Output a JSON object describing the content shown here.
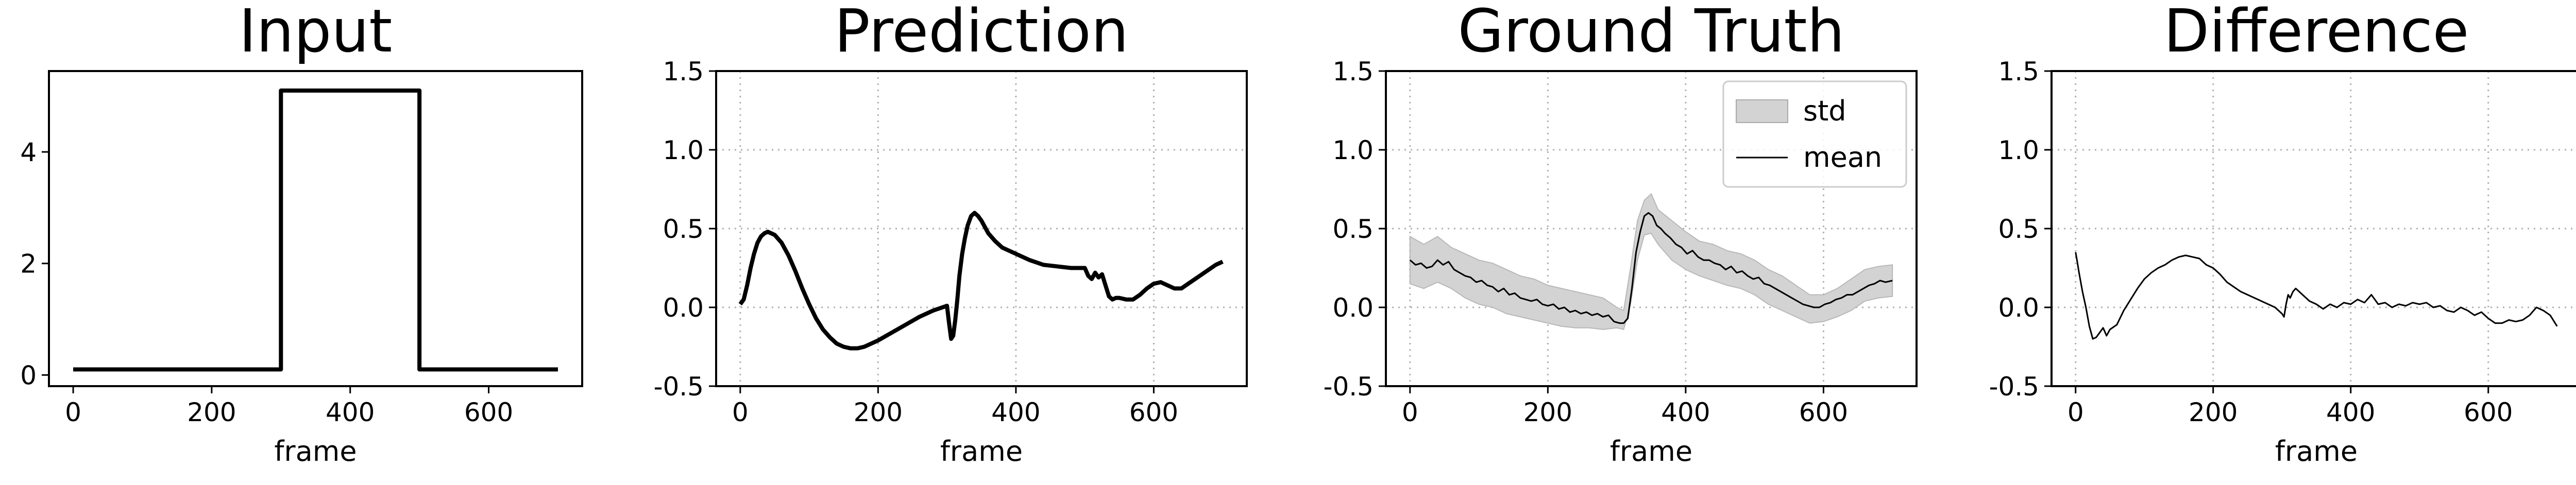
{
  "chart_data": [
    {
      "type": "line",
      "title": "Input",
      "xlabel": "frame",
      "ylabel": "",
      "xlim": [
        -35,
        735
      ],
      "ylim": [
        -0.2,
        5.45
      ],
      "xticks": [
        0,
        200,
        400,
        600
      ],
      "yticks": [
        0,
        2,
        4
      ],
      "grid": false,
      "series": [
        {
          "style": "thick",
          "color": "#000000",
          "x": [
            0,
            300,
            300,
            500,
            500,
            700
          ],
          "y": [
            0.1,
            0.1,
            5.1,
            5.1,
            0.1,
            0.1
          ]
        }
      ]
    },
    {
      "type": "line",
      "title": "Prediction",
      "xlabel": "frame",
      "ylabel": "",
      "xlim": [
        -35,
        735
      ],
      "ylim": [
        -0.5,
        1.5
      ],
      "xticks": [
        0,
        200,
        400,
        600
      ],
      "yticks": [
        -0.5,
        0.0,
        0.5,
        1.0,
        1.5
      ],
      "grid": true,
      "series": [
        {
          "style": "thick",
          "color": "#000000",
          "x": [
            0,
            5,
            10,
            15,
            20,
            25,
            30,
            35,
            40,
            45,
            50,
            60,
            70,
            80,
            90,
            100,
            110,
            120,
            130,
            140,
            150,
            160,
            170,
            180,
            190,
            200,
            220,
            240,
            260,
            280,
            300,
            303,
            306,
            309,
            312,
            315,
            318,
            322,
            326,
            330,
            335,
            340,
            345,
            350,
            355,
            360,
            370,
            380,
            390,
            400,
            420,
            440,
            460,
            480,
            500,
            505,
            510,
            515,
            520,
            525,
            530,
            535,
            540,
            545,
            550,
            560,
            570,
            580,
            590,
            600,
            610,
            620,
            630,
            640,
            650,
            660,
            670,
            680,
            690,
            700
          ],
          "y": [
            0.02,
            0.05,
            0.14,
            0.25,
            0.34,
            0.41,
            0.45,
            0.47,
            0.48,
            0.47,
            0.46,
            0.41,
            0.33,
            0.23,
            0.12,
            0.02,
            -0.07,
            -0.14,
            -0.19,
            -0.23,
            -0.25,
            -0.26,
            -0.26,
            -0.25,
            -0.23,
            -0.21,
            -0.16,
            -0.11,
            -0.06,
            -0.02,
            0.01,
            -0.1,
            -0.2,
            -0.18,
            -0.08,
            0.05,
            0.2,
            0.34,
            0.44,
            0.52,
            0.58,
            0.6,
            0.58,
            0.55,
            0.51,
            0.47,
            0.42,
            0.38,
            0.36,
            0.34,
            0.3,
            0.27,
            0.26,
            0.25,
            0.25,
            0.2,
            0.18,
            0.22,
            0.19,
            0.21,
            0.14,
            0.07,
            0.05,
            0.06,
            0.06,
            0.05,
            0.05,
            0.08,
            0.12,
            0.15,
            0.16,
            0.14,
            0.12,
            0.12,
            0.15,
            0.18,
            0.21,
            0.24,
            0.27,
            0.29
          ]
        }
      ]
    },
    {
      "type": "area",
      "title": "Ground Truth",
      "xlabel": "frame",
      "ylabel": "",
      "xlim": [
        -35,
        735
      ],
      "ylim": [
        -0.5,
        1.5
      ],
      "xticks": [
        0,
        200,
        400,
        600
      ],
      "yticks": [
        -0.5,
        0.0,
        0.5,
        1.0,
        1.5
      ],
      "grid": true,
      "legend_position": "top-right",
      "legend": [
        {
          "label": "std",
          "kind": "patch",
          "color": "#d3d3d3"
        },
        {
          "label": "mean",
          "kind": "line",
          "color": "#000000"
        }
      ],
      "band": {
        "x": [
          0,
          20,
          40,
          60,
          80,
          100,
          120,
          140,
          160,
          180,
          200,
          220,
          240,
          260,
          280,
          300,
          310,
          320,
          330,
          340,
          350,
          360,
          380,
          400,
          420,
          440,
          460,
          480,
          500,
          520,
          540,
          560,
          580,
          600,
          620,
          640,
          660,
          680,
          700
        ],
        "upper": [
          0.45,
          0.4,
          0.45,
          0.38,
          0.34,
          0.3,
          0.28,
          0.24,
          0.2,
          0.18,
          0.14,
          0.12,
          0.1,
          0.08,
          0.06,
          0.0,
          -0.02,
          0.25,
          0.55,
          0.68,
          0.72,
          0.62,
          0.55,
          0.48,
          0.42,
          0.4,
          0.36,
          0.34,
          0.3,
          0.24,
          0.2,
          0.14,
          0.08,
          0.08,
          0.12,
          0.18,
          0.24,
          0.26,
          0.27
        ],
        "lower": [
          0.15,
          0.12,
          0.16,
          0.12,
          0.06,
          0.02,
          0.0,
          -0.04,
          -0.06,
          -0.08,
          -0.1,
          -0.12,
          -0.13,
          -0.13,
          -0.14,
          -0.13,
          -0.14,
          0.02,
          0.3,
          0.46,
          0.47,
          0.4,
          0.3,
          0.24,
          0.2,
          0.17,
          0.14,
          0.12,
          0.08,
          0.02,
          -0.02,
          -0.06,
          -0.1,
          -0.09,
          -0.06,
          -0.02,
          0.04,
          0.06,
          0.07
        ]
      },
      "series": [
        {
          "style": "thin",
          "color": "#000000",
          "x": [
            0,
            8,
            16,
            24,
            32,
            40,
            48,
            56,
            64,
            72,
            80,
            88,
            96,
            104,
            112,
            120,
            128,
            136,
            144,
            152,
            160,
            168,
            176,
            184,
            192,
            200,
            208,
            216,
            224,
            232,
            240,
            248,
            256,
            264,
            272,
            280,
            288,
            296,
            304,
            310,
            316,
            322,
            328,
            334,
            340,
            346,
            352,
            358,
            364,
            370,
            378,
            386,
            394,
            402,
            410,
            418,
            426,
            434,
            442,
            450,
            458,
            466,
            474,
            482,
            490,
            498,
            506,
            514,
            522,
            530,
            538,
            546,
            554,
            562,
            570,
            578,
            586,
            594,
            602,
            610,
            618,
            626,
            634,
            642,
            650,
            658,
            666,
            674,
            682,
            690,
            700
          ],
          "y": [
            0.3,
            0.27,
            0.28,
            0.25,
            0.26,
            0.3,
            0.27,
            0.29,
            0.24,
            0.22,
            0.2,
            0.19,
            0.16,
            0.17,
            0.14,
            0.13,
            0.1,
            0.12,
            0.08,
            0.09,
            0.06,
            0.05,
            0.04,
            0.05,
            0.02,
            0.01,
            0.02,
            -0.01,
            0.0,
            -0.03,
            -0.02,
            -0.04,
            -0.03,
            -0.05,
            -0.04,
            -0.06,
            -0.05,
            -0.09,
            -0.1,
            -0.1,
            -0.07,
            0.12,
            0.35,
            0.48,
            0.58,
            0.6,
            0.58,
            0.52,
            0.5,
            0.47,
            0.44,
            0.4,
            0.38,
            0.34,
            0.36,
            0.32,
            0.3,
            0.3,
            0.28,
            0.27,
            0.24,
            0.26,
            0.22,
            0.23,
            0.2,
            0.18,
            0.19,
            0.15,
            0.14,
            0.12,
            0.1,
            0.08,
            0.06,
            0.04,
            0.02,
            0.01,
            0.0,
            0.0,
            0.02,
            0.03,
            0.05,
            0.06,
            0.08,
            0.08,
            0.1,
            0.12,
            0.14,
            0.15,
            0.17,
            0.16,
            0.17
          ]
        }
      ]
    },
    {
      "type": "line",
      "title": "Difference",
      "xlabel": "frame",
      "ylabel": "",
      "xlim": [
        -35,
        735
      ],
      "ylim": [
        -0.5,
        1.5
      ],
      "xticks": [
        0,
        200,
        400,
        600
      ],
      "yticks": [
        -0.5,
        0.0,
        0.5,
        1.0,
        1.5
      ],
      "grid": true,
      "series": [
        {
          "style": "thin",
          "color": "#000000",
          "x": [
            0,
            2,
            5,
            10,
            15,
            20,
            25,
            30,
            35,
            40,
            45,
            50,
            60,
            70,
            80,
            90,
            100,
            110,
            120,
            130,
            140,
            150,
            160,
            170,
            180,
            190,
            200,
            210,
            220,
            230,
            240,
            250,
            260,
            270,
            280,
            290,
            300,
            303,
            306,
            309,
            312,
            316,
            320,
            330,
            340,
            350,
            360,
            370,
            380,
            390,
            400,
            410,
            420,
            430,
            440,
            450,
            460,
            470,
            480,
            490,
            500,
            510,
            520,
            530,
            540,
            550,
            560,
            570,
            580,
            590,
            600,
            610,
            620,
            630,
            640,
            650,
            660,
            670,
            680,
            690,
            700
          ],
          "y": [
            0.35,
            0.3,
            0.22,
            0.1,
            0.0,
            -0.12,
            -0.2,
            -0.19,
            -0.16,
            -0.13,
            -0.18,
            -0.14,
            -0.11,
            -0.02,
            0.05,
            0.12,
            0.18,
            0.22,
            0.25,
            0.27,
            0.3,
            0.32,
            0.33,
            0.32,
            0.31,
            0.27,
            0.25,
            0.21,
            0.16,
            0.13,
            0.1,
            0.08,
            0.06,
            0.04,
            0.02,
            0.0,
            -0.04,
            -0.06,
            0.02,
            0.08,
            0.06,
            0.1,
            0.12,
            0.08,
            0.04,
            0.02,
            -0.01,
            0.02,
            0.0,
            0.03,
            0.02,
            0.05,
            0.03,
            0.08,
            0.02,
            0.03,
            0.0,
            0.02,
            0.01,
            0.03,
            0.02,
            0.03,
            0.0,
            0.01,
            -0.02,
            -0.03,
            0.0,
            -0.02,
            -0.05,
            -0.03,
            -0.07,
            -0.1,
            -0.1,
            -0.08,
            -0.09,
            -0.08,
            -0.05,
            0.0,
            -0.02,
            -0.05,
            -0.12
          ]
        }
      ]
    }
  ]
}
